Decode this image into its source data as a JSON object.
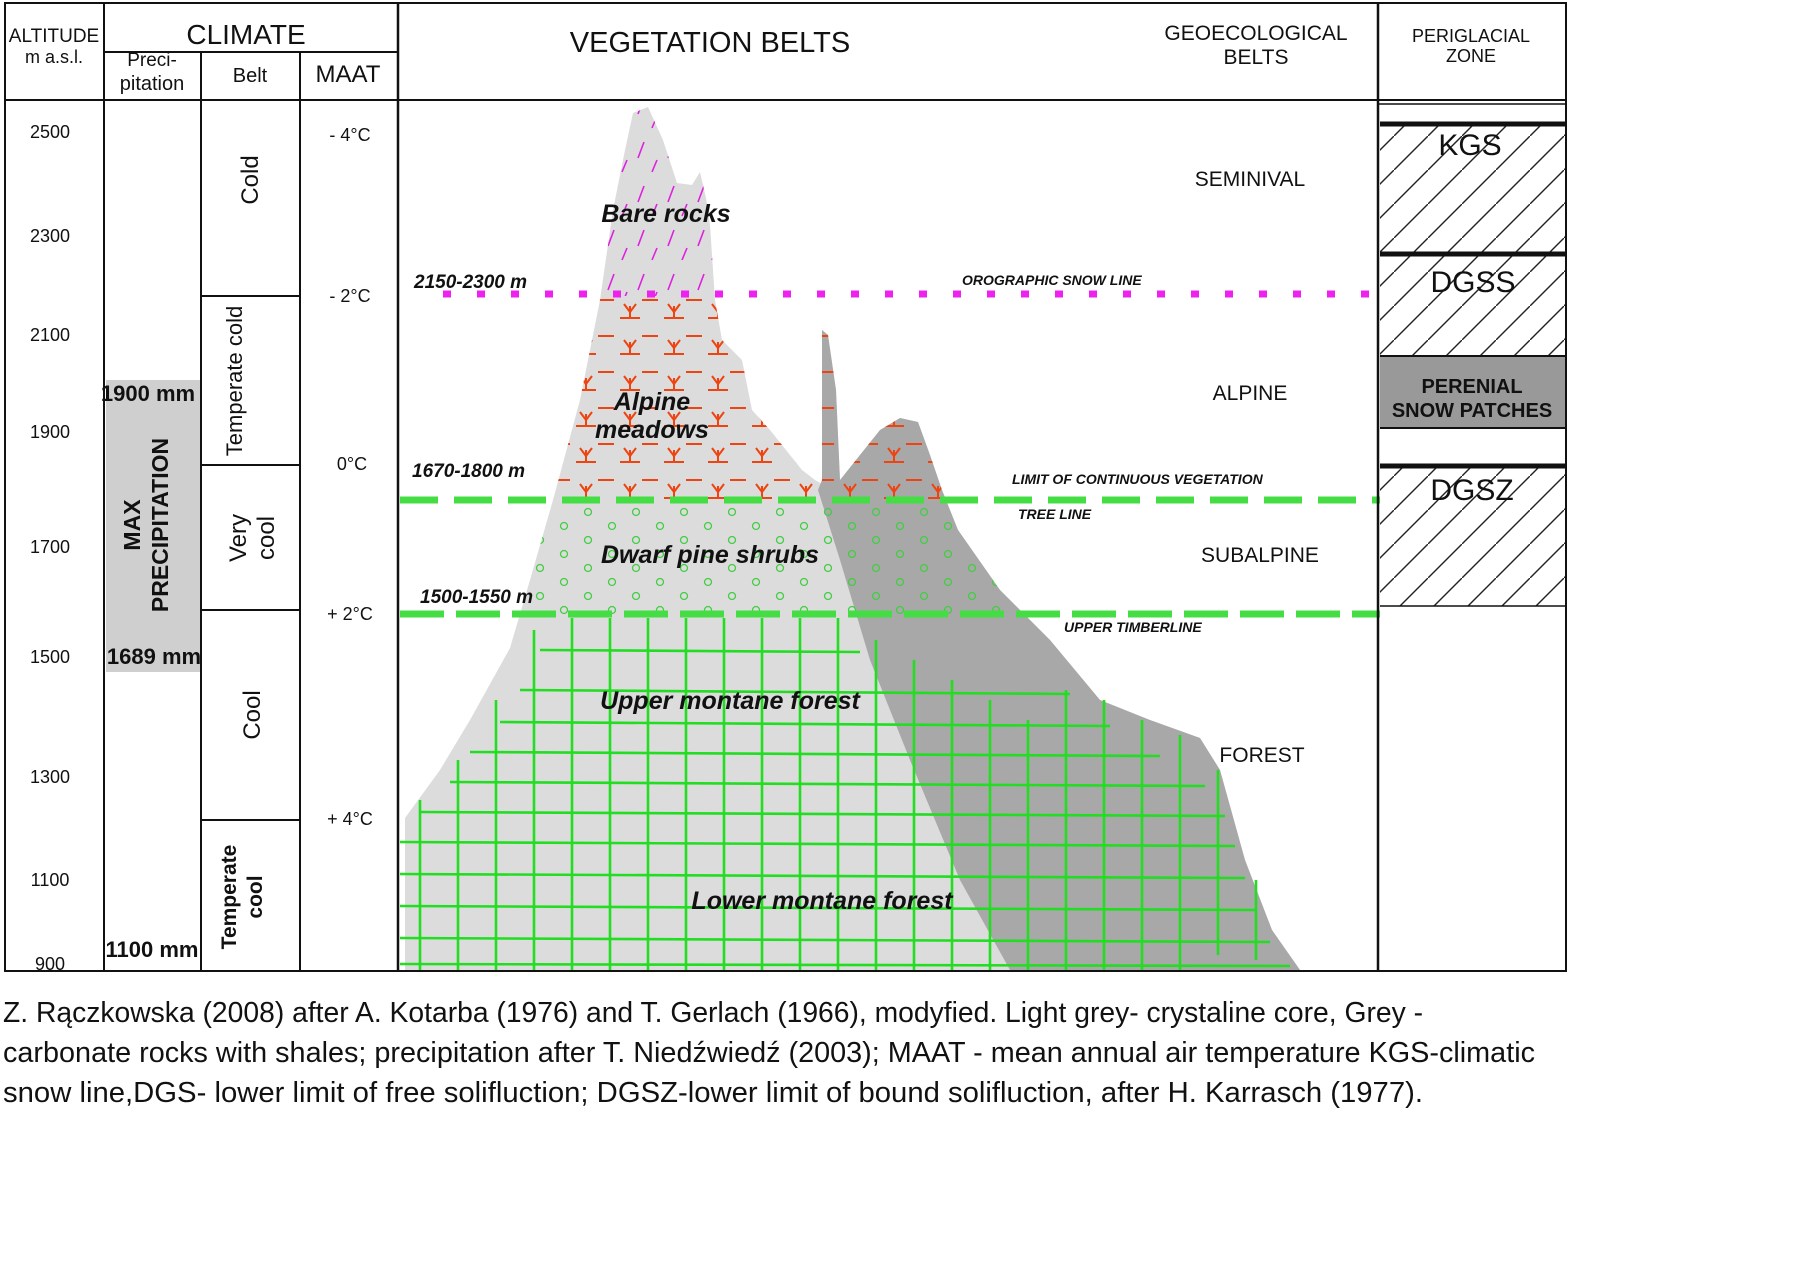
{
  "header": {
    "altitude_line1": "ALTITUDE",
    "altitude_line2": "m a.s.l.",
    "climate": "CLIMATE",
    "precip_line1": "Preci-",
    "precip_line2": "pitation",
    "belt": "Belt",
    "maat": "MAAT",
    "vegetation_belts": "VEGETATION BELTS",
    "geoecological_line1": "GEOECOLOGICAL",
    "geoecological_line2": "BELTS",
    "periglacial_line1": "PERIGLACIAL",
    "periglacial_line2": "ZONE"
  },
  "altitude_ticks": [
    "2500",
    "2300",
    "2100",
    "1900",
    "1700",
    "1500",
    "1300",
    "1100",
    "900"
  ],
  "precipitation": {
    "max_line1": "MAX",
    "max_line2": "PRECIPITATION",
    "top_value": "1900 mm",
    "bottom_value": "1689 mm",
    "base_value": "1100 mm"
  },
  "climate_belts": [
    "Cold",
    "Temperate cold",
    "Very",
    "cool",
    "Cool",
    "Temperate",
    "cool"
  ],
  "maat_ticks": [
    "- 4°C",
    "- 2°C",
    "0°C",
    "+ 2°C",
    "+ 4°C"
  ],
  "vegetation": {
    "bare_rocks": "Bare rocks",
    "alpine_line1": "Alpine",
    "alpine_line2": "meadows",
    "dwarf_pine": "Dwarf pine shrubs",
    "upper_montane": "Upper montane forest",
    "lower_montane": "Lower montane forest"
  },
  "lines": {
    "snow_range": "2150-2300 m",
    "snow_label": "OROGRAPHIC SNOW LINE",
    "veg_range": "1670-1800 m",
    "veg_label": "LIMIT OF CONTINUOUS VEGETATION",
    "tree_line": "TREE LINE",
    "timber_range": "1500-1550 m",
    "timber_label": "UPPER TIMBERLINE"
  },
  "geoecological": [
    "SEMINIVAL",
    "ALPINE",
    "SUBALPINE",
    "FOREST"
  ],
  "periglacial": {
    "kgs": "KGS",
    "dgss": "DGSS",
    "snow_line1": "PERENIAL",
    "snow_line2": "SNOW PATCHES",
    "dgsz": "DGSZ"
  },
  "caption": {
    "line1": "Z. Rączkowska (2008) after A. Kotarba (1976) and T. Gerlach (1966), modyfied. Light grey- crystaline core, Grey -",
    "line2": "carbonate rocks with shales; precipitation after T. Niedźwiedź (2003); MAAT - mean annual air temperature KGS-climatic",
    "line3": "snow line,DGS- lower limit of free solifluction; DGSZ-lower limit of bound solifluction, after H. Karrasch (1977)."
  },
  "colors": {
    "light_grey": "#dcdcdc",
    "grey": "#a8a8a8",
    "precip_band": "#cfcfcf",
    "forest_green": "#22dd22",
    "meadow_red": "#ee4411",
    "snow_magenta": "#ee22ee",
    "dash_green": "#44dd44",
    "perennial_band": "#999999"
  }
}
